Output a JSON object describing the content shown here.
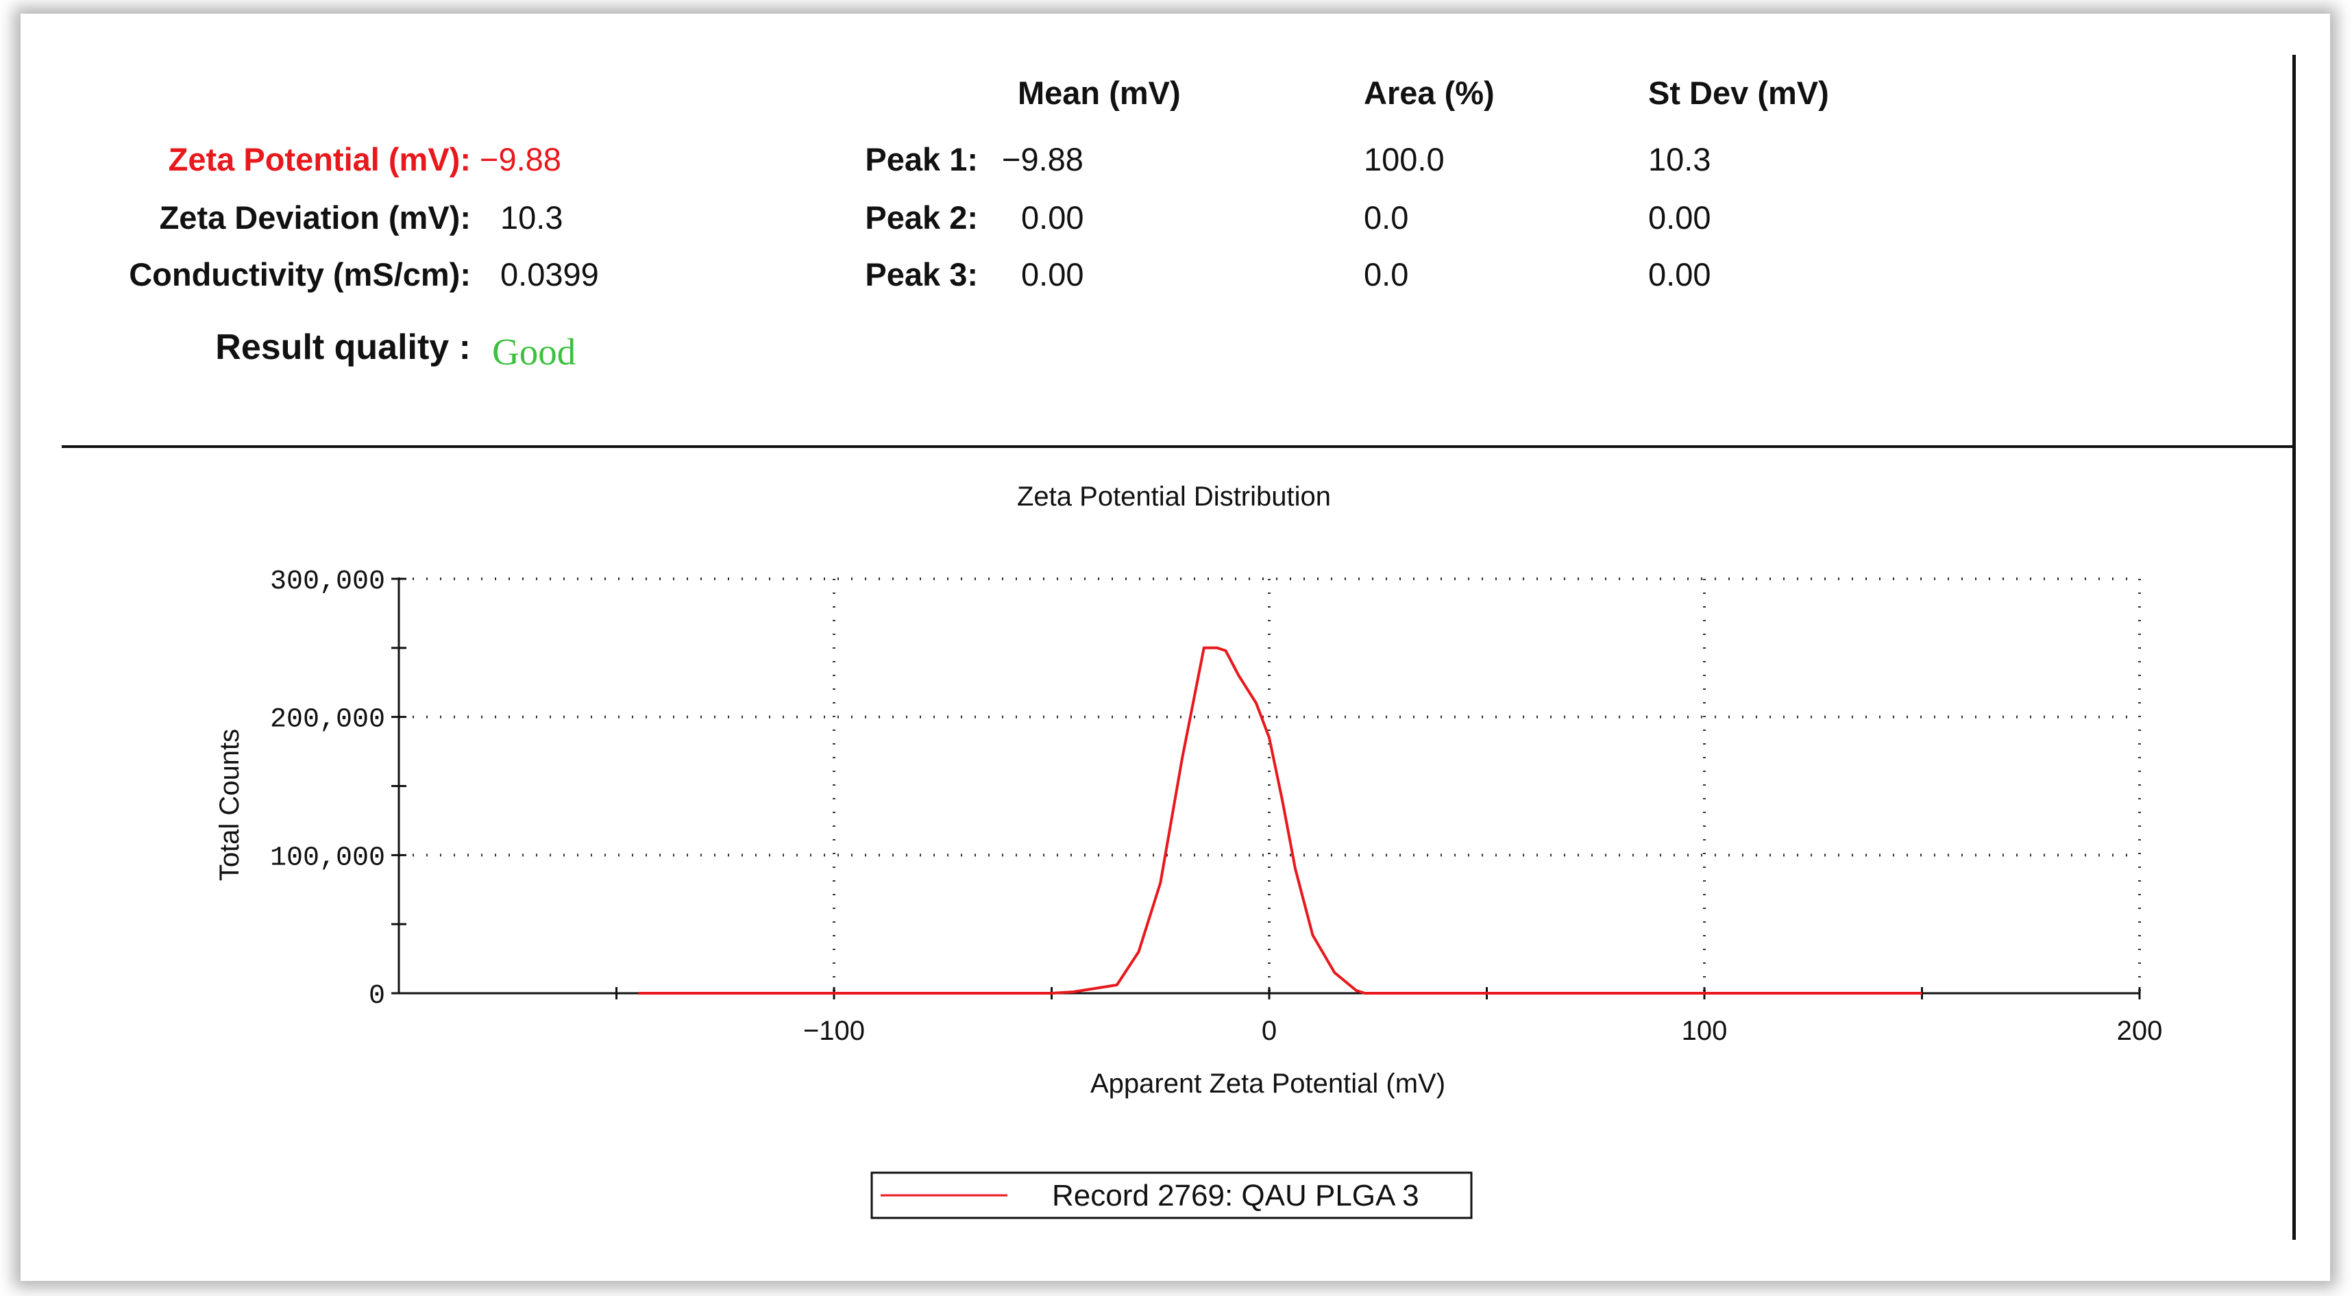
{
  "summary": {
    "zeta_potential": {
      "label": "Zeta Potential (mV):",
      "value": "−9.88"
    },
    "zeta_deviation": {
      "label": "Zeta Deviation (mV):",
      "value": "10.3"
    },
    "conductivity": {
      "label": "Conductivity (mS/cm):",
      "value": "0.0399"
    },
    "result_quality": {
      "label": "Result quality :",
      "value": "Good"
    }
  },
  "peaks_table": {
    "headers": [
      "Mean (mV)",
      "Area (%)",
      "St Dev (mV)"
    ],
    "rows": [
      {
        "label": "Peak 1:",
        "mean": "−9.88",
        "area": "100.0",
        "stdev": "10.3"
      },
      {
        "label": "Peak 2:",
        "mean": "0.00",
        "area": "0.0",
        "stdev": "0.00"
      },
      {
        "label": "Peak 3:",
        "mean": "0.00",
        "area": "0.0",
        "stdev": "0.00"
      }
    ]
  },
  "colors": {
    "accent_red": "#e8181c",
    "good_green": "#3fbf3f",
    "series": "#e8181c"
  },
  "chart_data": {
    "type": "line",
    "title": "Zeta Potential Distribution",
    "xlabel": "Apparent Zeta Potential (mV)",
    "ylabel": "Total Counts",
    "xlim": [
      -200,
      200
    ],
    "ylim": [
      0,
      300000
    ],
    "xticks": [
      -100,
      0,
      100,
      200
    ],
    "xtick_labels": [
      "−100",
      "0",
      "100",
      "200"
    ],
    "yticks": [
      0,
      100000,
      200000,
      300000
    ],
    "ytick_labels": [
      "0",
      "100,000",
      "200,000",
      "300,000"
    ],
    "grid": true,
    "legend_position": "bottom-center",
    "series": [
      {
        "name": "Record 2769: QAU PLGA 3",
        "x": [
          -145,
          -50,
          -45,
          -35,
          -30,
          -25,
          -20,
          -15,
          -12,
          -10,
          -7,
          -3,
          0,
          3,
          6,
          10,
          15,
          20,
          22,
          150
        ],
        "y": [
          0,
          0,
          1000,
          6000,
          30000,
          80000,
          170000,
          250000,
          250000,
          248000,
          230000,
          210000,
          185000,
          140000,
          90000,
          42000,
          15000,
          2000,
          0,
          0
        ]
      }
    ]
  }
}
